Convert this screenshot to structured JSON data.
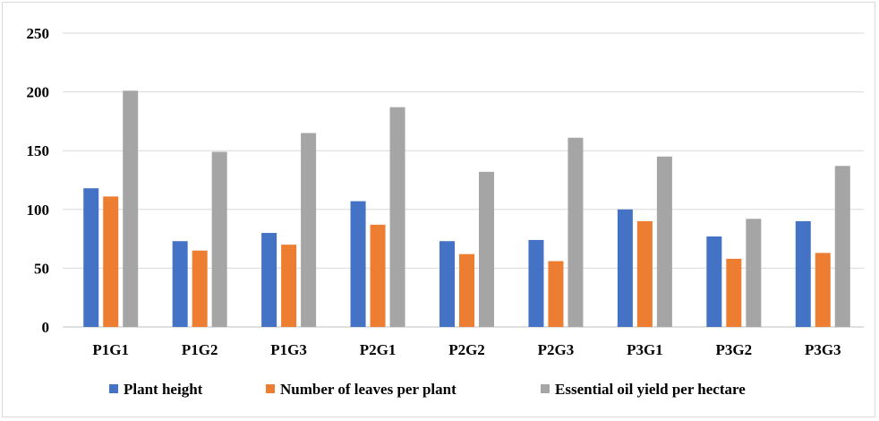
{
  "chart_data": {
    "type": "bar",
    "title": "",
    "xlabel": "",
    "ylabel": "",
    "ylim": [
      0,
      250
    ],
    "yticks": [
      0,
      50,
      100,
      150,
      200,
      250
    ],
    "grid": true,
    "legend_position": "bottom",
    "categories": [
      "P1G1",
      "P1G2",
      "P1G3",
      "P2G1",
      "P2G2",
      "P2G3",
      "P3G1",
      "P3G2",
      "P3G3"
    ],
    "series": [
      {
        "name": "Plant height",
        "color": "#4472C4",
        "values": [
          118,
          73,
          80,
          107,
          73,
          74,
          100,
          77,
          90
        ]
      },
      {
        "name": "Number of leaves per plant",
        "color": "#ED7D31",
        "values": [
          111,
          65,
          70,
          87,
          62,
          56,
          90,
          58,
          63
        ]
      },
      {
        "name": "Essential oil yield per hectare",
        "color": "#A5A5A5",
        "values": [
          201,
          149,
          165,
          187,
          132,
          161,
          145,
          92,
          137
        ]
      }
    ]
  }
}
